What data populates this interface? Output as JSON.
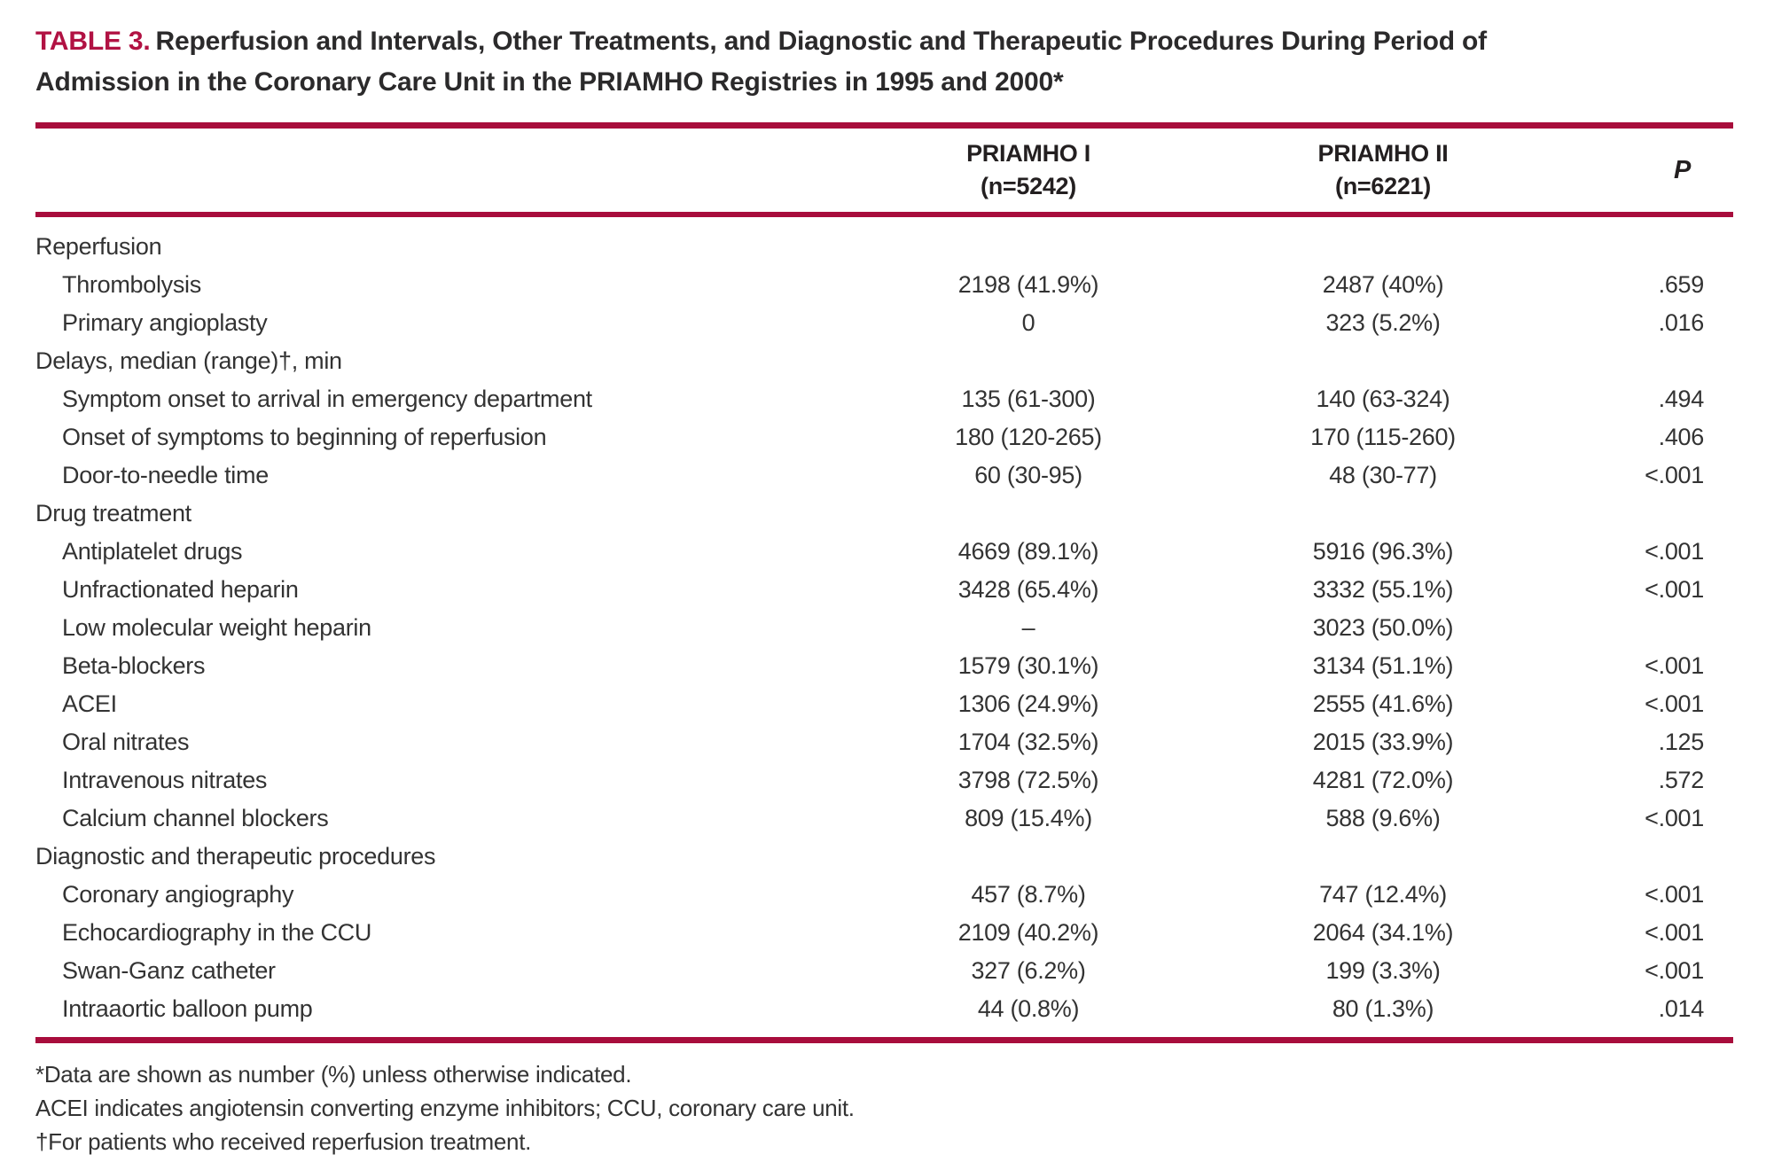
{
  "title": {
    "label": "TABLE 3.",
    "text": "Reperfusion and Intervals, Other Treatments, and Diagnostic and Therapeutic Procedures During Period of Admission in the Coronary Care Unit in the PRIAMHO Registries in 1995 and 2000*"
  },
  "columns": {
    "group1_line1": "PRIAMHO I",
    "group1_line2": "(n=5242)",
    "group2_line1": "PRIAMHO II",
    "group2_line2": "(n=6221)",
    "p_label": "P"
  },
  "table": {
    "rows": [
      {
        "label": "Reperfusion",
        "section": true
      },
      {
        "label": "Thrombolysis",
        "v1": "2198 (41.9%)",
        "v2": "2487 (40%)",
        "p": ".659"
      },
      {
        "label": "Primary angioplasty",
        "v1": "0",
        "v2": "323 (5.2%)",
        "p": ".016"
      },
      {
        "label": "Delays, median (range)†, min",
        "section": true
      },
      {
        "label": "Symptom onset to arrival in emergency department",
        "v1": "135 (61-300)",
        "v2": "140 (63-324)",
        "p": ".494"
      },
      {
        "label": "Onset of symptoms to beginning of reperfusion",
        "v1": "180 (120-265)",
        "v2": "170 (115-260)",
        "p": ".406"
      },
      {
        "label": "Door-to-needle time",
        "v1": "60 (30-95)",
        "v2": "48 (30-77)",
        "p": "<.001"
      },
      {
        "label": "Drug treatment",
        "section": true
      },
      {
        "label": "Antiplatelet drugs",
        "v1": "4669 (89.1%)",
        "v2": "5916 (96.3%)",
        "p": "<.001"
      },
      {
        "label": "Unfractionated heparin",
        "v1": "3428 (65.4%)",
        "v2": "3332 (55.1%)",
        "p": "<.001"
      },
      {
        "label": "Low molecular weight heparin",
        "v1": "–",
        "v2": "3023 (50.0%)",
        "p": ""
      },
      {
        "label": "Beta-blockers",
        "v1": "1579 (30.1%)",
        "v2": "3134 (51.1%)",
        "p": "<.001"
      },
      {
        "label": "ACEI",
        "v1": "1306 (24.9%)",
        "v2": "2555 (41.6%)",
        "p": "<.001"
      },
      {
        "label": "Oral nitrates",
        "v1": "1704 (32.5%)",
        "v2": "2015 (33.9%)",
        "p": ".125"
      },
      {
        "label": "Intravenous nitrates",
        "v1": "3798 (72.5%)",
        "v2": "4281 (72.0%)",
        "p": ".572"
      },
      {
        "label": "Calcium channel blockers",
        "v1": "809 (15.4%)",
        "v2": "588 (9.6%)",
        "p": "<.001"
      },
      {
        "label": "Diagnostic and therapeutic procedures",
        "section": true
      },
      {
        "label": "Coronary angiography",
        "v1": "457 (8.7%)",
        "v2": "747 (12.4%)",
        "p": "<.001"
      },
      {
        "label": "Echocardiography in the CCU",
        "v1": "2109 (40.2%)",
        "v2": "2064 (34.1%)",
        "p": "<.001"
      },
      {
        "label": "Swan-Ganz catheter",
        "v1": "327 (6.2%)",
        "v2": "199 (3.3%)",
        "p": "<.001"
      },
      {
        "label": "Intraaortic balloon pump",
        "v1": "44 (0.8%)",
        "v2": "80 (1.3%)",
        "p": ".014"
      }
    ]
  },
  "footnotes": [
    "*Data are shown as number (%) unless otherwise indicated.",
    "ACEI indicates angiotensin converting enzyme inhibitors; CCU, coronary care unit.",
    "†For patients who received reperfusion treatment."
  ],
  "colors": {
    "accent_rule": "#a80d3c",
    "title_accent": "#b11243",
    "title_text": "#2b2a2b",
    "body_text": "#333333"
  }
}
